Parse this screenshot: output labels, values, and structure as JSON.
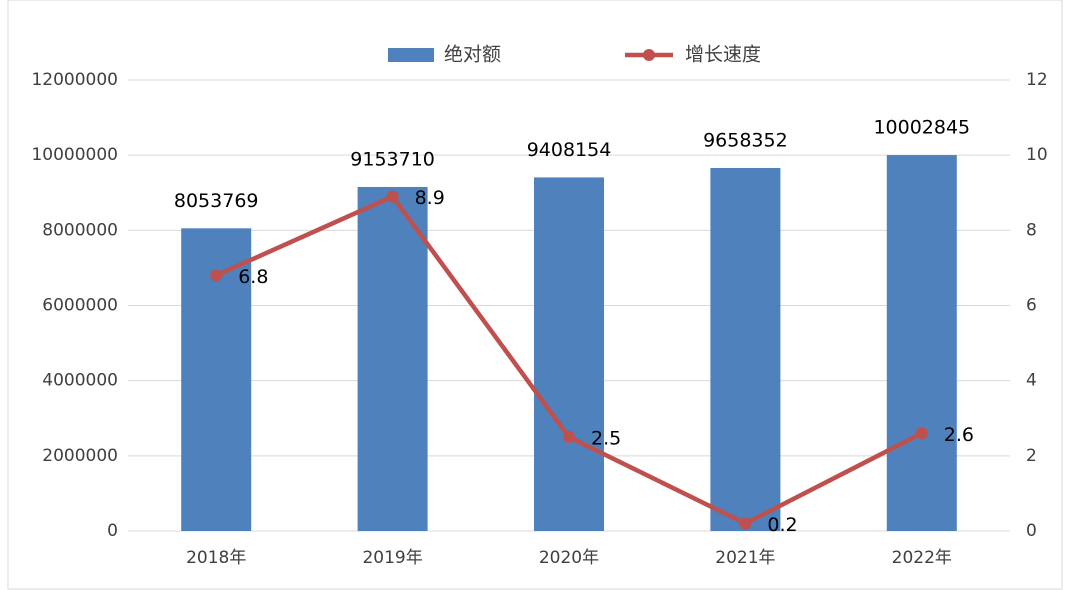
{
  "chart_data": {
    "type": "bar_line",
    "categories": [
      "2018年",
      "2019年",
      "2020年",
      "2021年",
      "2022年"
    ],
    "series": [
      {
        "name": "绝对额",
        "type": "bar",
        "color": "#4f81bd",
        "values": [
          8053769,
          9153710,
          9408154,
          9658352,
          10002845
        ]
      },
      {
        "name": "增长速度",
        "type": "line",
        "color": "#c0504d",
        "axis": "y2",
        "values": [
          6.8,
          8.9,
          2.5,
          0.2,
          2.6
        ]
      }
    ],
    "ylim": [
      0,
      12000000
    ],
    "yticks": [
      0,
      2000000,
      4000000,
      6000000,
      8000000,
      10000000,
      12000000
    ],
    "y2lim": [
      0,
      12
    ],
    "y2ticks": [
      0,
      2,
      4,
      6,
      8,
      10,
      12
    ],
    "grid": true,
    "legend": "top"
  }
}
